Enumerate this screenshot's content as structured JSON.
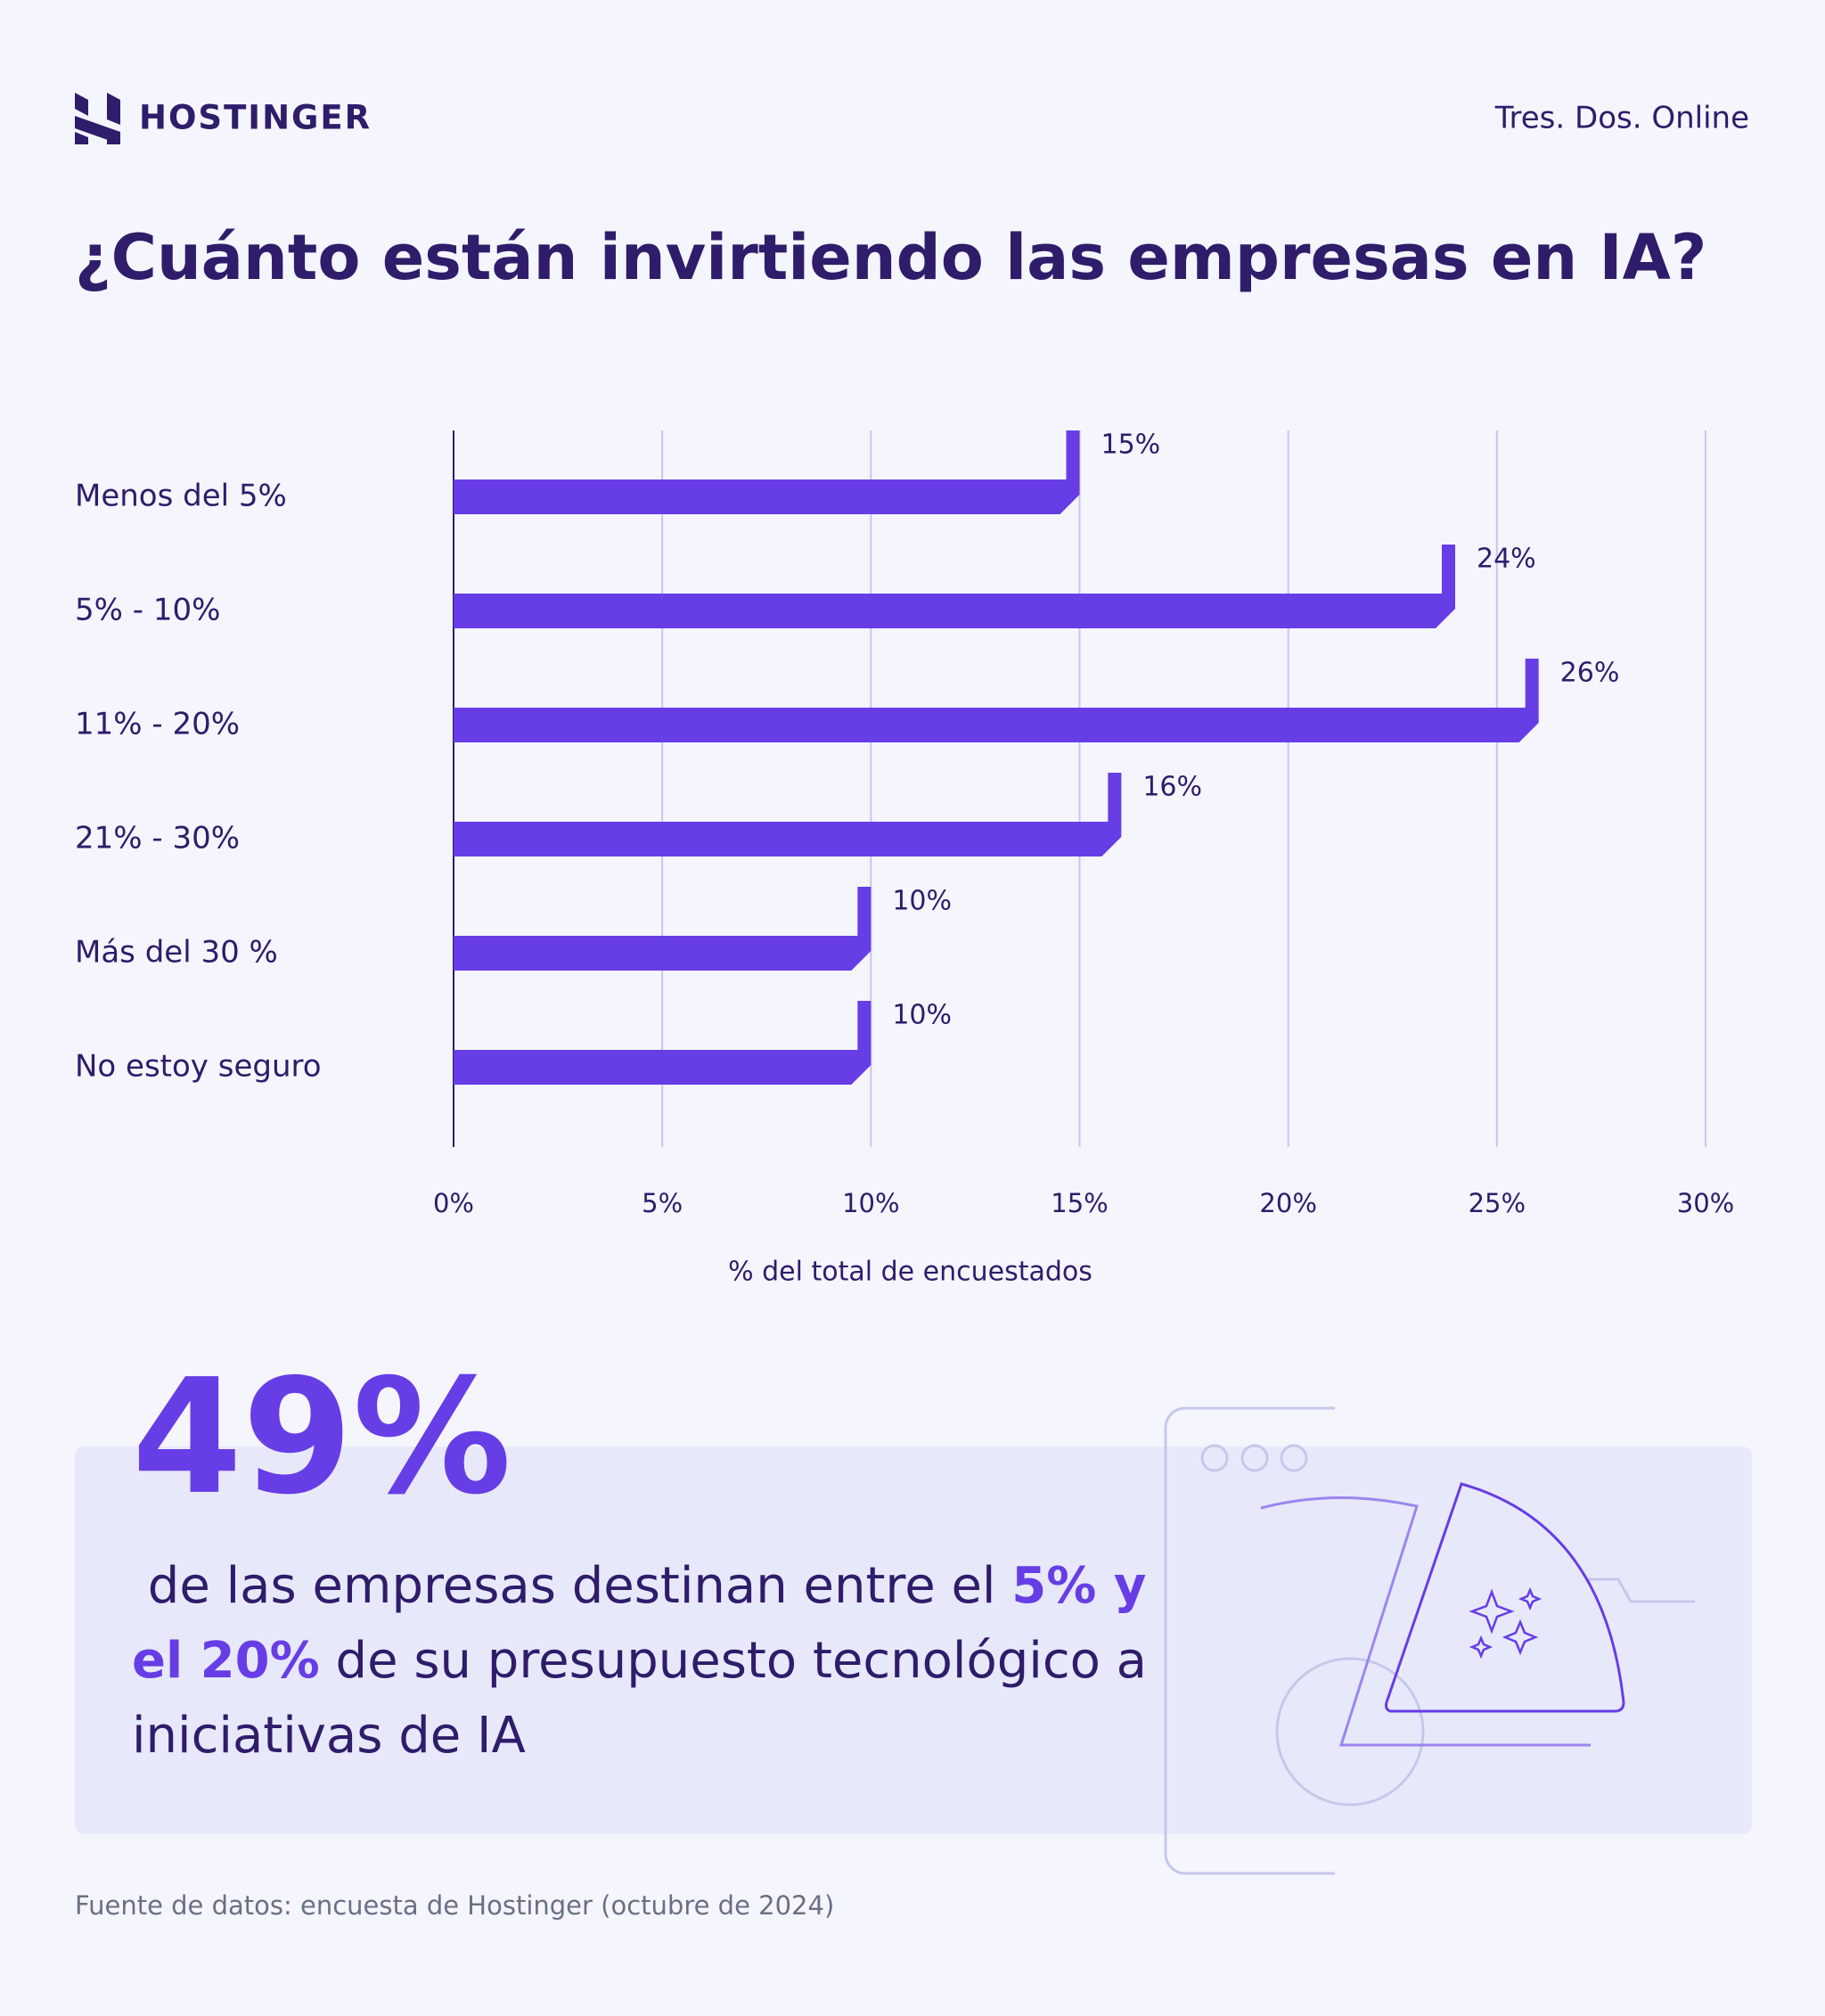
{
  "brand": "HOSTINGER",
  "partner": "Tres. Dos. Online",
  "chart_data": {
    "type": "bar",
    "orientation": "horizontal",
    "title": "¿Cuánto están invirtiendo las empresas en IA?",
    "categories": [
      "Menos del 5%",
      "5% - 10%",
      "11% - 20%",
      "21% - 30%",
      "Más del 30 %",
      "No estoy seguro"
    ],
    "values": [
      15,
      24,
      26,
      16,
      10,
      10
    ],
    "value_labels": [
      "15%",
      "24%",
      "26%",
      "16%",
      "10%",
      "10%"
    ],
    "color": "#673de6",
    "xlim": [
      0,
      30
    ],
    "xticks": [
      {
        "value": 0,
        "label": "0%"
      },
      {
        "value": 5,
        "label": "5%"
      },
      {
        "value": 10,
        "label": "10%"
      },
      {
        "value": 15,
        "label": "15%"
      },
      {
        "value": 20,
        "label": "20%"
      },
      {
        "value": 25,
        "label": "25%"
      },
      {
        "value": 30,
        "label": "30%"
      }
    ],
    "xlabel": "% del total de encuestados",
    "grid": true
  },
  "callout": {
    "stat": "49%",
    "lines": [
      [
        {
          "text": " de las empresas destinan entre el ",
          "highlight": false
        },
        {
          "text": "5% y",
          "highlight": true
        }
      ],
      [
        {
          "text": "el 20%",
          "highlight": true
        },
        {
          "text": " de su presupuesto tecnológico a",
          "highlight": false
        }
      ],
      [
        {
          "text": "iniciativas de IA",
          "highlight": false
        }
      ]
    ]
  },
  "source": "Fuente de datos: encuesta de Hostinger (octubre de 2024)"
}
